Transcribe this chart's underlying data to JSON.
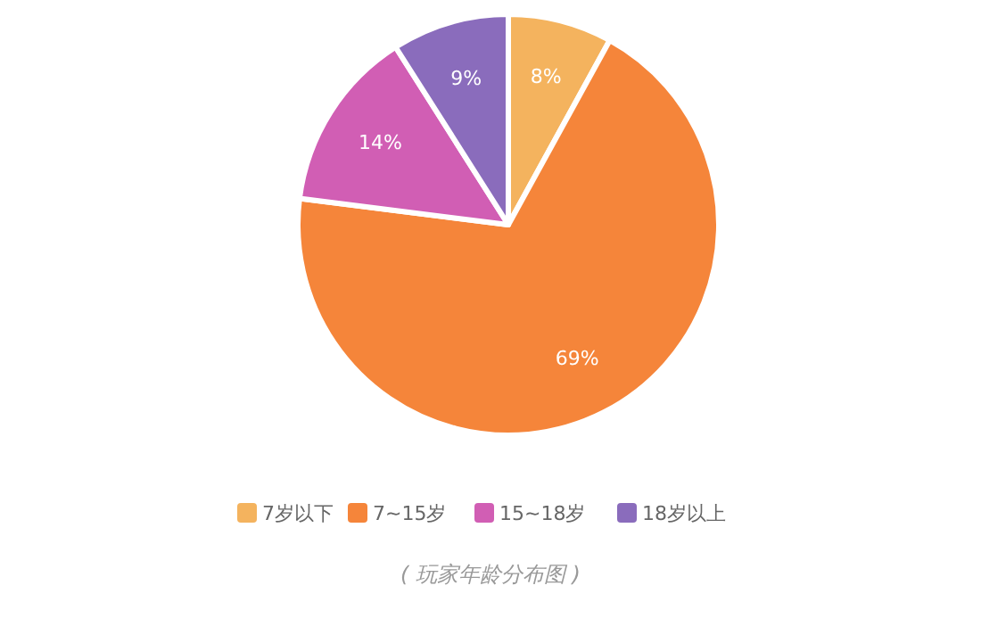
{
  "chart_data": {
    "type": "pie",
    "categories": [
      "7岁以下",
      "7~15岁",
      "15~18岁",
      "18岁以上"
    ],
    "values": [
      8,
      69,
      14,
      9
    ],
    "colors": [
      "#f4b35e",
      "#f5853a",
      "#d15eb4",
      "#8a6cbc"
    ],
    "value_labels": [
      "8%",
      "69%",
      "14%",
      "9%"
    ],
    "legend": "bottom",
    "annotations": [
      "( 玩家年龄分布图 )"
    ]
  }
}
